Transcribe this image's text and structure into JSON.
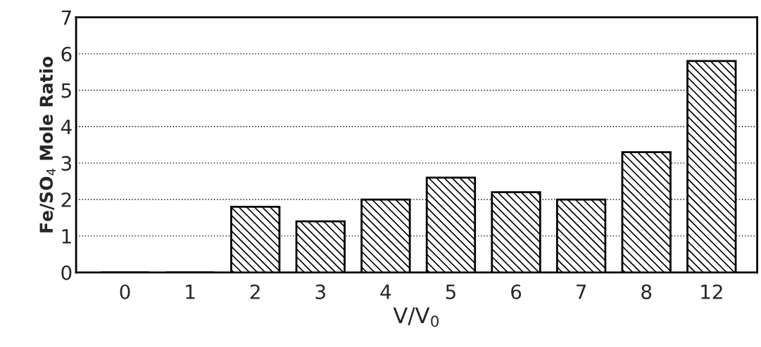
{
  "chart_data": {
    "type": "bar",
    "xlabel": "V/V$_{0}$",
    "ylabel": "Fe/SO$_{4}$ Mole Ratio",
    "categories": [
      "0",
      "1",
      "2",
      "3",
      "4",
      "5",
      "6",
      "7",
      "8",
      "12"
    ],
    "values": [
      0,
      0,
      1.8,
      1.4,
      2.0,
      2.6,
      2.2,
      2.0,
      3.3,
      5.8
    ],
    "color": "#000000",
    "ylim": [
      0,
      7
    ],
    "yticks": [
      0,
      1,
      2,
      3,
      4,
      5,
      6,
      7
    ],
    "grid": "y"
  }
}
